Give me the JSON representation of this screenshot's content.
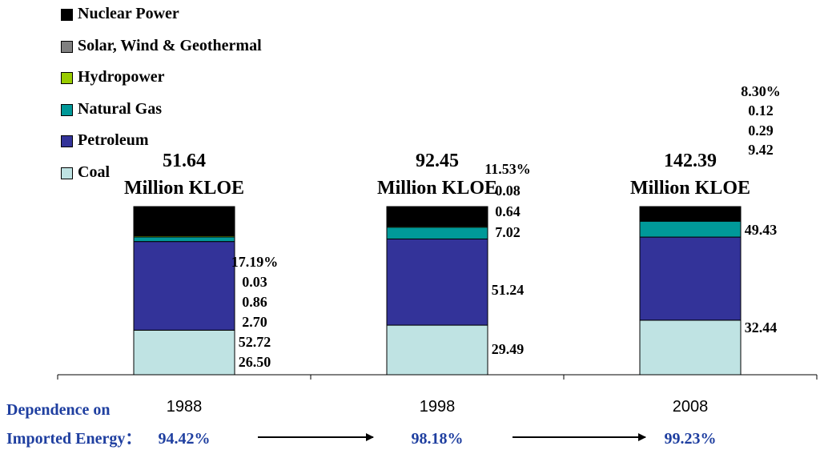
{
  "colors": {
    "Nuclear Power": "#000000",
    "Solar, Wind & Geothermal": "#808080",
    "Hydropower": "#99cc00",
    "Natural Gas": "#009999",
    "Petroleum": "#333399",
    "Coal": "#bfe3e3",
    "dependence_text": "#1f3fa0"
  },
  "legend": [
    {
      "label": "Nuclear Power",
      "color": "#000000"
    },
    {
      "label": "Solar, Wind & Geothermal",
      "color": "#808080"
    },
    {
      "label": "Hydropower",
      "color": "#99cc00"
    },
    {
      "label": "Natural Gas",
      "color": "#009999"
    },
    {
      "label": "Petroleum",
      "color": "#333399"
    },
    {
      "label": "Coal",
      "color": "#bfe3e3"
    }
  ],
  "chart_data": {
    "type": "bar",
    "stacked": true,
    "categories": [
      "1988",
      "1998",
      "2008"
    ],
    "totals": [
      {
        "value": "51.64",
        "unit": "Million KLOE"
      },
      {
        "value": "92.45",
        "unit": "Million KLOE"
      },
      {
        "value": "142.39",
        "unit": "Million KLOE"
      }
    ],
    "series": [
      {
        "name": "Coal",
        "values": [
          26.5,
          29.49,
          32.44
        ],
        "labels": [
          "26.50",
          "29.49",
          "32.44"
        ]
      },
      {
        "name": "Petroleum",
        "values": [
          52.72,
          51.24,
          49.43
        ],
        "labels": [
          "52.72",
          "51.24",
          "49.43"
        ]
      },
      {
        "name": "Natural Gas",
        "values": [
          2.7,
          7.02,
          9.42
        ],
        "labels": [
          "2.70",
          "7.02",
          "9.42"
        ]
      },
      {
        "name": "Hydropower",
        "values": [
          0.86,
          0.64,
          0.29
        ],
        "labels": [
          "0.86",
          "0.64",
          "0.29"
        ]
      },
      {
        "name": "Solar, Wind & Geothermal",
        "values": [
          0.03,
          0.08,
          0.12
        ],
        "labels": [
          "0.03",
          "0.08",
          "0.12"
        ]
      },
      {
        "name": "Nuclear Power",
        "values": [
          17.19,
          11.53,
          8.3
        ],
        "labels": [
          "17.19%",
          "11.53%",
          "8.30%"
        ]
      }
    ],
    "value_unit": "%",
    "legend_position": "top-left",
    "grid": false
  },
  "dependence": {
    "label_line1": "Dependence on",
    "label_line2": "Imported Energy：",
    "values": [
      "94.42%",
      "98.18%",
      "99.23%"
    ]
  }
}
